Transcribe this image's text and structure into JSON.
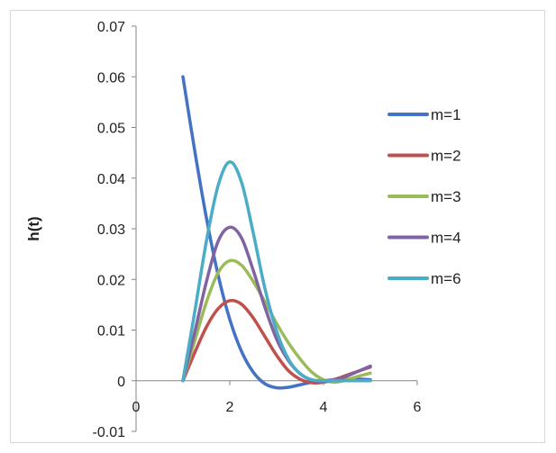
{
  "chart_data": {
    "type": "line",
    "title": "",
    "xlabel": "",
    "ylabel": "h(t)",
    "xlim": [
      0,
      6
    ],
    "ylim": [
      -0.01,
      0.07
    ],
    "xticks": [
      "0",
      "2",
      "4",
      "6"
    ],
    "yticks": [
      "-0.01",
      "0",
      "0.01",
      "0.02",
      "0.03",
      "0.04",
      "0.05",
      "0.06",
      "0.07"
    ],
    "grid": false,
    "legend_position": "right",
    "series": [
      {
        "name": "m=1",
        "color": "#4472C4",
        "x": [
          1.0,
          1.25,
          1.5,
          1.75,
          2.0,
          2.25,
          2.5,
          2.75,
          3.0,
          3.25,
          3.5,
          3.75,
          4.0,
          4.25,
          4.5,
          4.75,
          5.0
        ],
        "y": [
          0.06,
          0.0455,
          0.0322,
          0.0209,
          0.0121,
          0.0058,
          0.0017,
          -0.0006,
          -0.0014,
          -0.0013,
          -0.0008,
          -0.0003,
          0.0,
          0.0002,
          0.0003,
          0.0003,
          0.0002
        ]
      },
      {
        "name": "m=2",
        "color": "#C0504D",
        "x": [
          1.0,
          1.25,
          1.5,
          1.75,
          2.0,
          2.25,
          2.5,
          2.75,
          3.0,
          3.25,
          3.5,
          3.75,
          4.0,
          4.25,
          4.5,
          4.75,
          5.0
        ],
        "y": [
          0.0,
          0.0055,
          0.0106,
          0.0142,
          0.0158,
          0.0151,
          0.0124,
          0.0087,
          0.005,
          0.002,
          0.0003,
          -0.0004,
          -0.0003,
          0.0003,
          0.0011,
          0.0019,
          0.0027
        ]
      },
      {
        "name": "m=3",
        "color": "#9BBB59",
        "x": [
          1.0,
          1.25,
          1.5,
          1.75,
          2.0,
          2.25,
          2.5,
          2.75,
          3.0,
          3.25,
          3.5,
          3.75,
          4.0,
          4.25,
          4.5,
          4.75,
          5.0
        ],
        "y": [
          0.0,
          0.0078,
          0.0155,
          0.0213,
          0.0237,
          0.0228,
          0.0196,
          0.0156,
          0.0113,
          0.0075,
          0.0043,
          0.0017,
          0.0002,
          -0.0003,
          0.0002,
          0.0009,
          0.0015
        ]
      },
      {
        "name": "m=4",
        "color": "#8064A2",
        "x": [
          1.0,
          1.25,
          1.5,
          1.75,
          2.0,
          2.25,
          2.5,
          2.75,
          3.0,
          3.25,
          3.5,
          3.75,
          4.0,
          4.25,
          4.5,
          4.75,
          5.0
        ],
        "y": [
          0.0,
          0.0095,
          0.0195,
          0.0275,
          0.0303,
          0.0282,
          0.0218,
          0.0145,
          0.0082,
          0.004,
          0.0014,
          0.0001,
          -0.0002,
          0.0002,
          0.0009,
          0.0019,
          0.0029
        ]
      },
      {
        "name": "m=6",
        "color": "#4BACC6",
        "x": [
          1.0,
          1.25,
          1.5,
          1.75,
          2.0,
          2.25,
          2.5,
          2.75,
          3.0,
          3.25,
          3.5,
          3.75,
          4.0,
          4.25,
          4.5,
          4.75,
          5.0
        ],
        "y": [
          0.0,
          0.0135,
          0.0275,
          0.0385,
          0.0432,
          0.0392,
          0.0292,
          0.0182,
          0.0098,
          0.0043,
          0.0014,
          0.0002,
          0.0,
          0.0,
          0.0,
          0.0,
          0.0
        ]
      }
    ]
  }
}
